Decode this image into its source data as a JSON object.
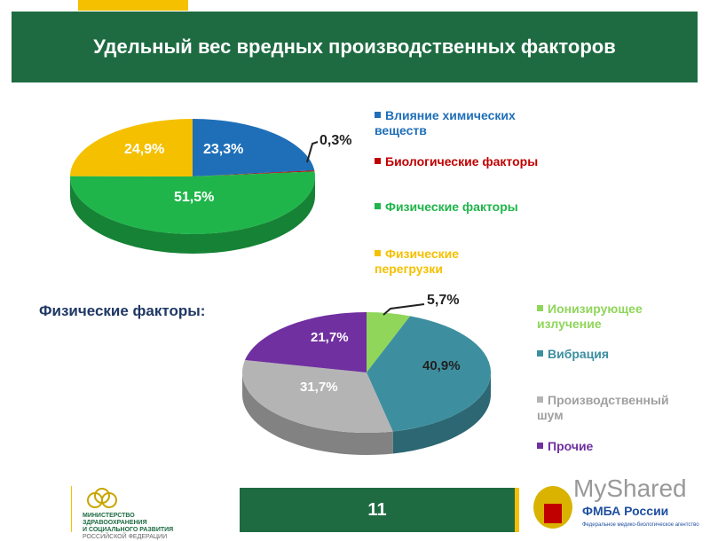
{
  "header": {
    "title": "Удельный вес вредных производственных факторов"
  },
  "subtitle": "Физические факторы:",
  "footer": {
    "page_number": "11",
    "ministry_lines": [
      "МИНИСТЕРСТВО",
      "ЗДРАВООХРАНЕНИЯ",
      "И СОЦИАЛЬНОГО РАЗВИТИЯ",
      "РОССИЙСКОЙ ФЕДЕРАЦИИ"
    ],
    "fmba_title": "ФМБА России",
    "fmba_subtitle": "Федеральное медико-биологическое агентство",
    "watermark": "MyShared"
  },
  "chart_data": [
    {
      "type": "pie",
      "title": "Удельный вес вредных производственных факторов",
      "categories": [
        "Влияние химических веществ",
        "Биологические факторы",
        "Физические факторы",
        "Физические перегрузки"
      ],
      "values": [
        23.3,
        0.3,
        51.5,
        24.9
      ],
      "labels": [
        "23,3%",
        "0,3%",
        "51,5%",
        "24,9%"
      ],
      "colors": [
        "#1f6fb8",
        "#c00000",
        "#1fb54a",
        "#f5c000"
      ],
      "legend_position": "right"
    },
    {
      "type": "pie",
      "title": "Физические факторы:",
      "categories": [
        "Ионизирующее излучение",
        "Вибрация",
        "Производственный шум",
        "Прочие"
      ],
      "values": [
        5.7,
        40.9,
        31.7,
        21.7
      ],
      "labels": [
        "5,7%",
        "40,9%",
        "31,7%",
        "21,7%"
      ],
      "colors": [
        "#8fd65a",
        "#3d8fa0",
        "#b4b4b4",
        "#7030a0"
      ],
      "legend_position": "right"
    }
  ]
}
